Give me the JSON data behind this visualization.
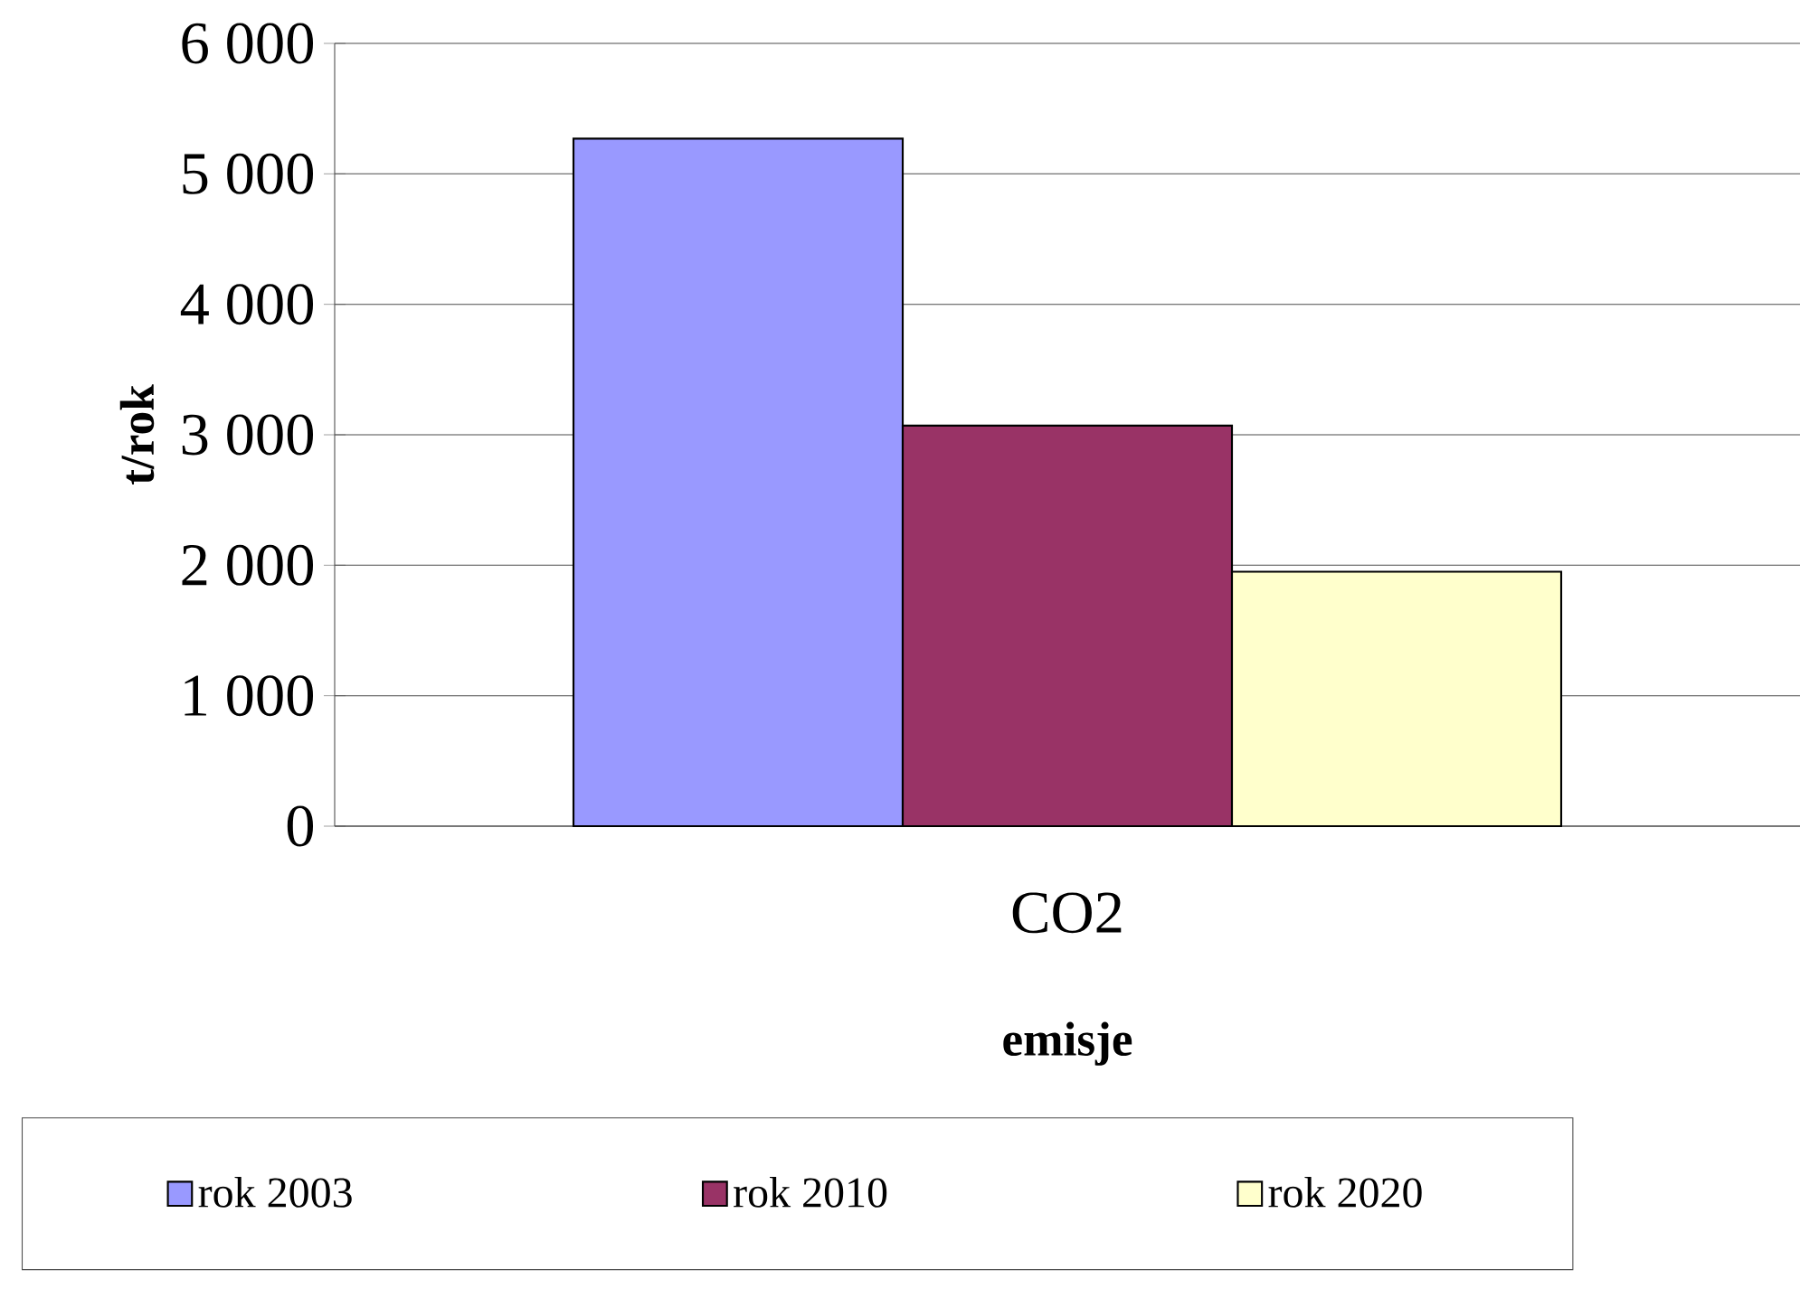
{
  "chart_data": {
    "type": "bar",
    "xlabel": "emisje",
    "ylabel": "t/rok",
    "categories": [
      "CO2"
    ],
    "series": [
      {
        "name": "rok 2003",
        "color": "#9999ff",
        "values": [
          5270
        ]
      },
      {
        "name": "rok 2010",
        "color": "#993366",
        "values": [
          3070
        ]
      },
      {
        "name": "rok 2020",
        "color": "#ffffcc",
        "values": [
          1950
        ]
      }
    ],
    "ylim": [
      0,
      6000
    ],
    "yticks": [
      {
        "value": 0,
        "label": "0"
      },
      {
        "value": 1000,
        "label": "1 000"
      },
      {
        "value": 2000,
        "label": "2 000"
      },
      {
        "value": 3000,
        "label": "3 000"
      },
      {
        "value": 4000,
        "label": "4 000"
      },
      {
        "value": 5000,
        "label": "5 000"
      },
      {
        "value": 6000,
        "label": "6 000"
      }
    ],
    "grid": "y",
    "legend": "bottom"
  }
}
